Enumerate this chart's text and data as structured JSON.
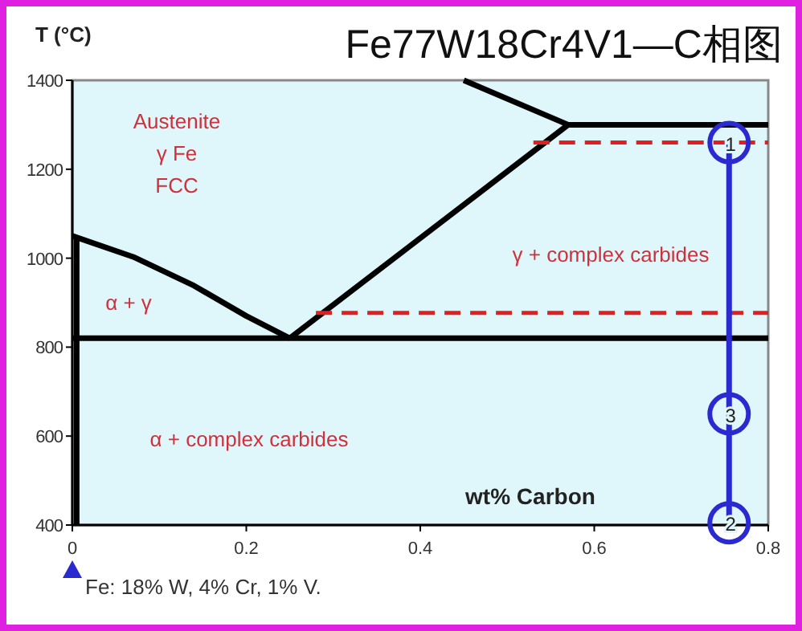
{
  "chart_data": {
    "type": "line",
    "title": "Fe77W18Cr4V1—C相图",
    "xlabel": "wt% Carbon",
    "ylabel": "T (°C)",
    "xlim": [
      0,
      0.8
    ],
    "ylim": [
      400,
      1400
    ],
    "xticks": [
      0,
      0.2,
      0.4,
      0.6,
      0.8
    ],
    "yticks": [
      400,
      600,
      800,
      1000,
      1200,
      1400
    ],
    "grid": false,
    "marker": "none",
    "series": [
      {
        "color": "#000000",
        "line_style": "solid",
        "x": [
          0.005,
          0.005
        ],
        "values": [
          400,
          1045
        ]
      },
      {
        "color": "#000000",
        "line_style": "solid",
        "x": [
          0,
          0.07,
          0.14,
          0.2,
          0.25
        ],
        "values": [
          1050,
          1003,
          938,
          870,
          820
        ]
      },
      {
        "color": "#000000",
        "line_style": "solid",
        "x": [
          0,
          0.8
        ],
        "values": [
          820,
          820
        ]
      },
      {
        "color": "#000000",
        "line_style": "solid",
        "x": [
          0.25,
          0.57
        ],
        "values": [
          820,
          1300
        ]
      },
      {
        "color": "#000000",
        "line_style": "solid",
        "x": [
          0.45,
          0.57,
          0.8
        ],
        "values": [
          1400,
          1300,
          1300
        ]
      },
      {
        "color": "#e02020",
        "line_style": "dashed",
        "x": [
          0.53,
          0.8
        ],
        "values": [
          1260,
          1260
        ]
      },
      {
        "color": "#e02020",
        "line_style": "dashed",
        "x": [
          0.28,
          0.8
        ],
        "values": [
          877,
          877
        ]
      },
      {
        "color": "#2a2ad0",
        "line_style": "solid",
        "x": [
          0.755,
          0.755
        ],
        "values": [
          1260,
          405
        ]
      },
      {
        "type": "scatter",
        "marker": "circle",
        "color": "#2a2ad0",
        "x": [
          0.755,
          0.755,
          0.755
        ],
        "values": [
          1260,
          650,
          405
        ]
      }
    ],
    "annotations": [
      "Austenite",
      "γ Fe",
      "FCC",
      "α + γ",
      "γ + complex carbides",
      "α + complex carbides",
      "1",
      "3",
      "2",
      "Fe: 18% W, 4% Cr, 1% V."
    ]
  }
}
